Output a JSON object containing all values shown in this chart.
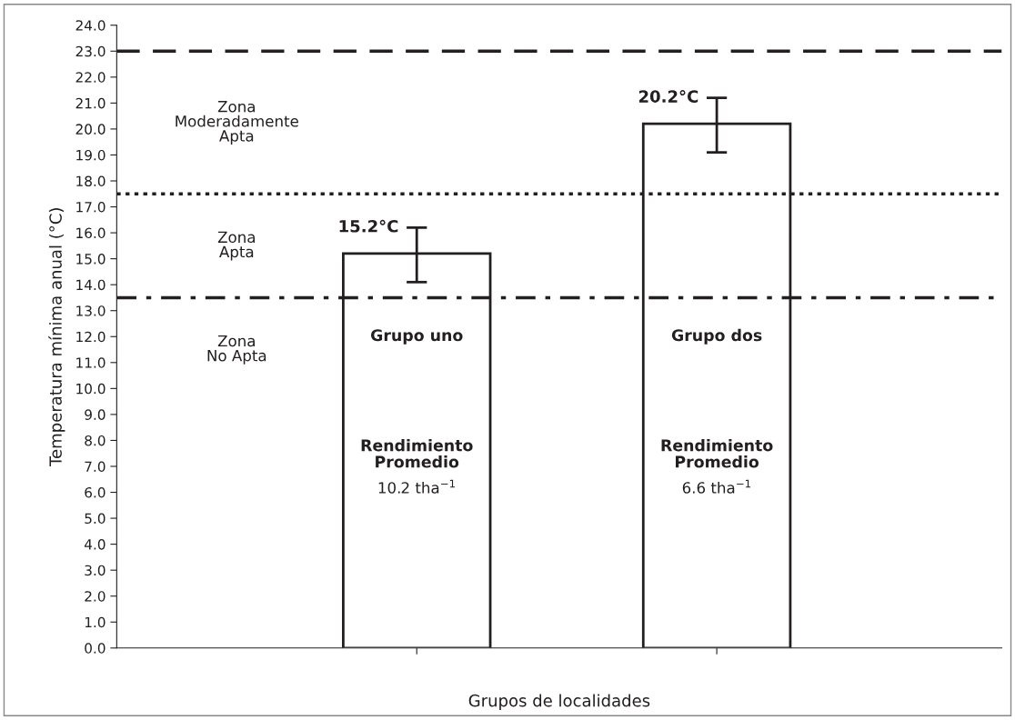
{
  "chart_data": {
    "type": "bar",
    "categories": [
      null,
      null
    ],
    "values": [
      15.2,
      20.2
    ],
    "errors": [
      [
        14.1,
        16.2
      ],
      [
        19.1,
        21.2
      ]
    ],
    "value_labels": [
      "15.2°C",
      "20.2°C"
    ],
    "color": "#ffffff",
    "ylabel": "Temperatura mínima anual (°C)",
    "xlabel": "Grupos de localidades",
    "ylim": [
      0,
      24
    ],
    "yticks": [
      {
        "value": 0,
        "label": "0.0"
      },
      {
        "value": 1,
        "label": "1.0"
      },
      {
        "value": 2,
        "label": "2.0"
      },
      {
        "value": 3,
        "label": "3.0"
      },
      {
        "value": 4,
        "label": "4.0"
      },
      {
        "value": 5,
        "label": "5.0"
      },
      {
        "value": 6,
        "label": "6.0"
      },
      {
        "value": 7,
        "label": "7.0"
      },
      {
        "value": 8,
        "label": "8.0"
      },
      {
        "value": 9,
        "label": "9.0"
      },
      {
        "value": 10,
        "label": "10.0"
      },
      {
        "value": 11,
        "label": "11.0"
      },
      {
        "value": 12,
        "label": "12.0"
      },
      {
        "value": 13,
        "label": "13.0"
      },
      {
        "value": 14,
        "label": "14.0"
      },
      {
        "value": 15,
        "label": "15.0"
      },
      {
        "value": 16,
        "label": "16.0"
      },
      {
        "value": 17,
        "label": "17.0"
      },
      {
        "value": 18,
        "label": "18.0"
      },
      {
        "value": 19,
        "label": "19.0"
      },
      {
        "value": 20,
        "label": "20.0"
      },
      {
        "value": 21,
        "label": "21.0"
      },
      {
        "value": 22,
        "label": "22.0"
      },
      {
        "value": 23,
        "label": "23.0"
      },
      {
        "value": 24,
        "label": "24.0"
      }
    ],
    "ref_lines": [
      {
        "axis": "y",
        "value": 23.0,
        "line_style": "dashed",
        "color": "#231f20"
      },
      {
        "axis": "y",
        "value": 17.5,
        "line_style": "dotted",
        "color": "#231f20"
      },
      {
        "axis": "y",
        "value": 13.5,
        "line_style": "dashdot",
        "color": "#231f20"
      }
    ],
    "annotations": [
      "Zona\nModeradamente\nApta",
      "Zona\nApta",
      "Zona\nNo Apta",
      "Grupo uno",
      "Rendimiento\nPromedio",
      "10.2 tha$^{−1}$",
      "Grupo dos",
      "Rendimiento\nPromedio",
      "6.6 tha$^{−1}$"
    ],
    "grid": false,
    "legend": false
  }
}
